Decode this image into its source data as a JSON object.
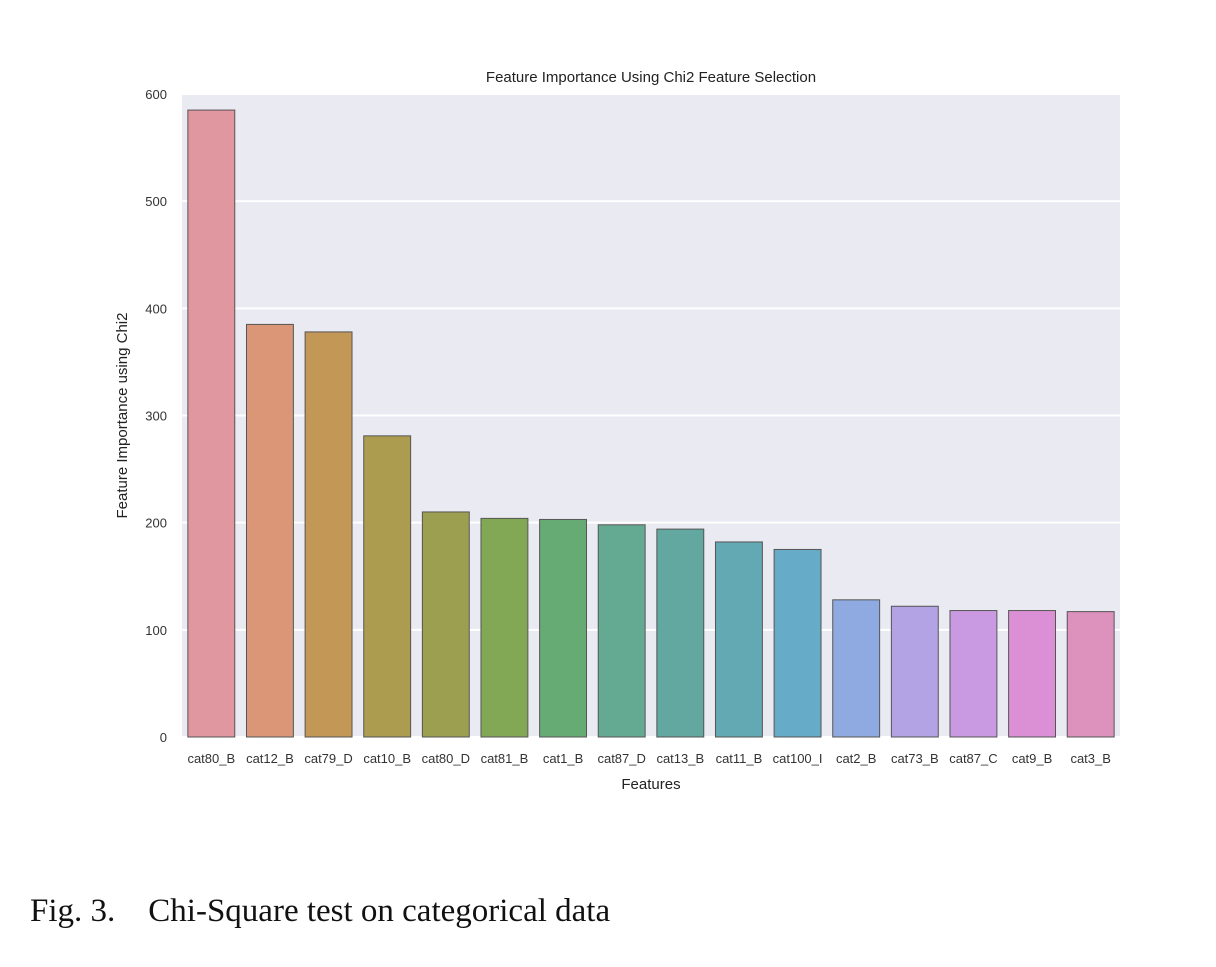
{
  "chart_data": {
    "type": "bar",
    "title": "Feature Importance Using Chi2 Feature Selection",
    "xlabel": "Features",
    "ylabel": "Feature Importance using Chi2",
    "ylim": [
      0,
      600
    ],
    "yticks": [
      0,
      100,
      200,
      300,
      400,
      500,
      600
    ],
    "grid": true,
    "categories": [
      "cat80_B",
      "cat12_B",
      "cat79_D",
      "cat10_B",
      "cat80_D",
      "cat81_B",
      "cat1_B",
      "cat87_D",
      "cat13_B",
      "cat11_B",
      "cat100_I",
      "cat2_B",
      "cat73_B",
      "cat87_C",
      "cat9_B",
      "cat3_B"
    ],
    "values": [
      585,
      385,
      378,
      281,
      210,
      204,
      203,
      198,
      194,
      182,
      175,
      128,
      122,
      118,
      118,
      117
    ],
    "colors": [
      "#e0979f",
      "#db9677",
      "#c39856",
      "#ab9c4f",
      "#9d9f50",
      "#83a855",
      "#67ab74",
      "#64aa93",
      "#62a8a1",
      "#63a9b4",
      "#66abc8",
      "#8eaae0",
      "#b3a2e4",
      "#c99ae1",
      "#db8fd5",
      "#dd91bd"
    ],
    "plot_background": "#eaeaf2",
    "grid_color": "#ffffff"
  },
  "caption": {
    "label": "Fig. 3.",
    "text": "Chi-Square test on categorical data"
  }
}
